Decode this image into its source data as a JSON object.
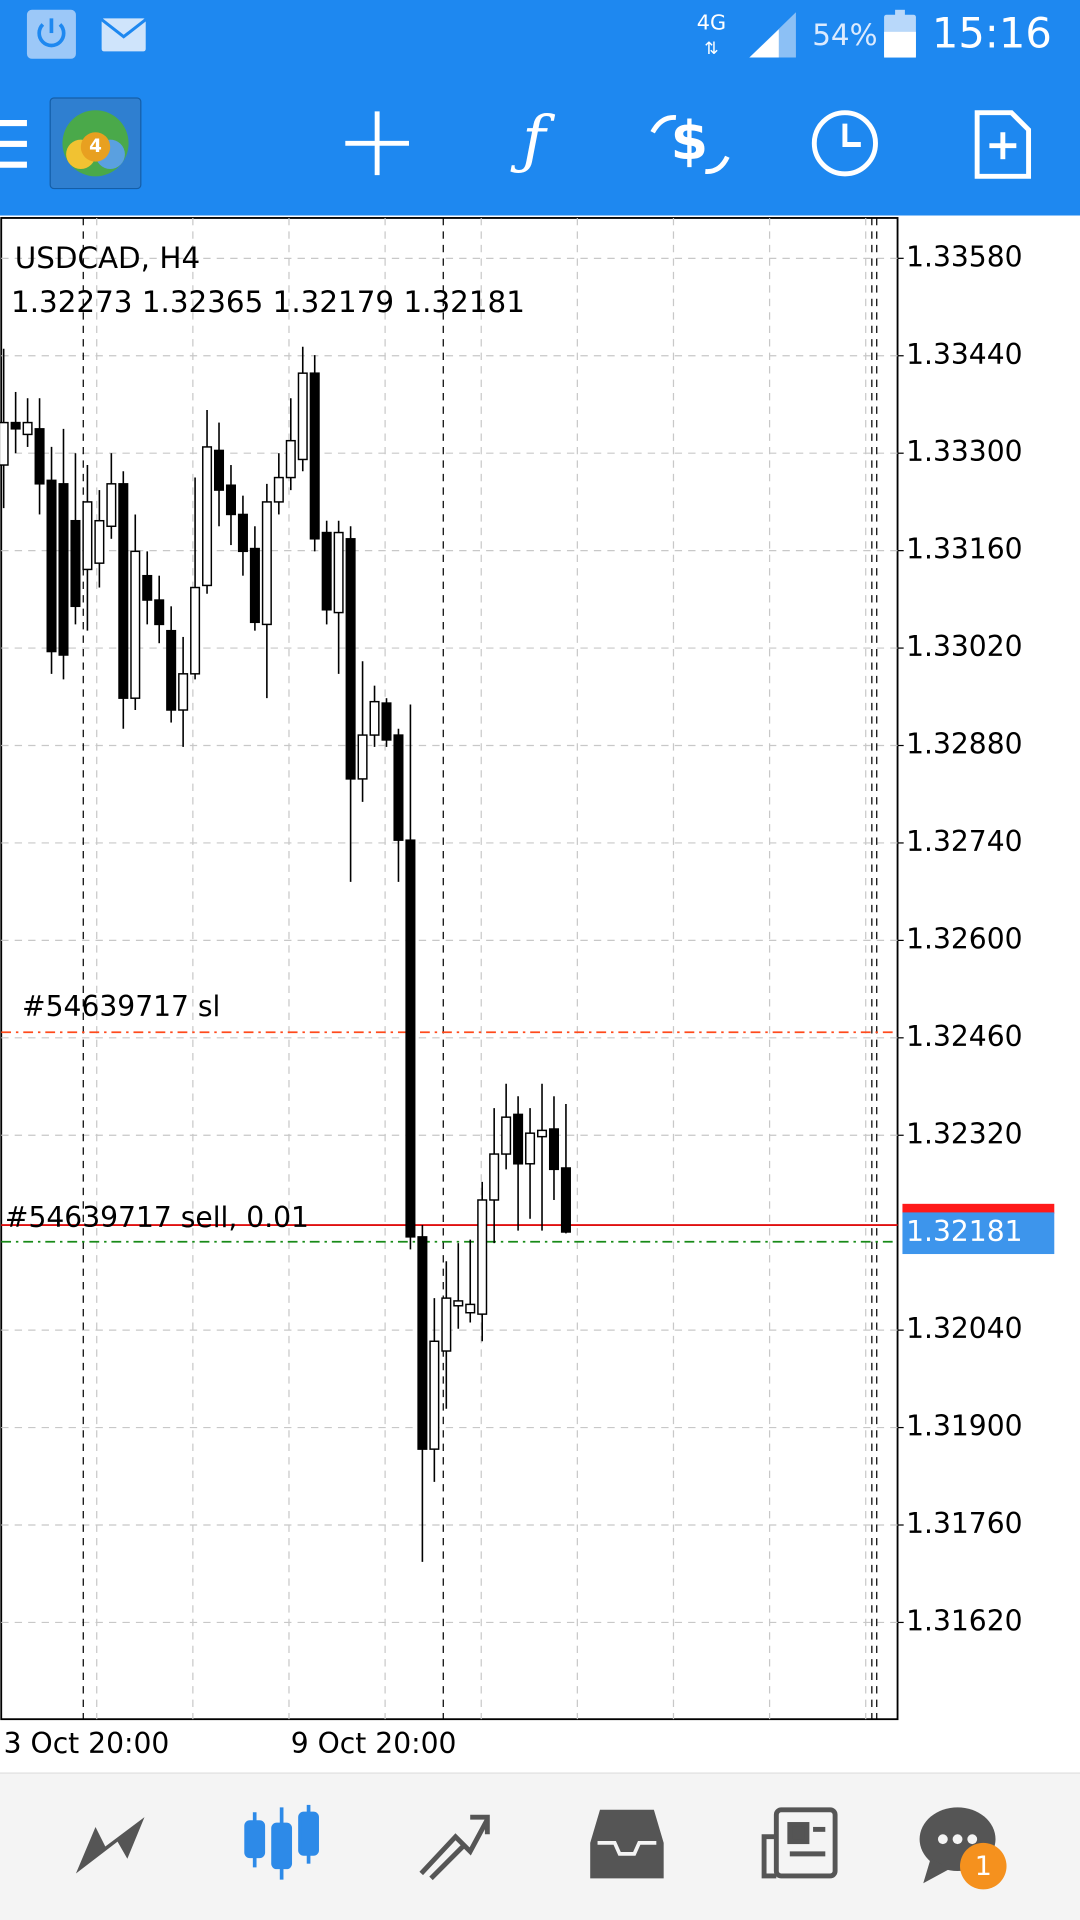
{
  "status_bar": {
    "network": "4G",
    "battery": "54%",
    "time": "15:16"
  },
  "bottom_nav": {
    "badge": "1"
  },
  "chart_data": {
    "type": "candlestick",
    "title": "USDCAD, H4",
    "ohlc_label": "1.32273 1.32365 1.32179 1.32181",
    "categories": [
      "3 Oct 20:00",
      null,
      null,
      null,
      null,
      null,
      null,
      null,
      null,
      null,
      null,
      null,
      null,
      null,
      null,
      null,
      null,
      null,
      null,
      null,
      null,
      null,
      null,
      null,
      "9 Oct 20:00",
      null,
      null,
      null,
      null,
      null,
      null,
      null,
      null,
      null,
      null,
      null,
      null,
      null,
      null,
      null,
      null,
      null,
      null,
      null,
      null,
      null,
      null,
      null
    ],
    "open": [
      1.33283,
      1.33344,
      1.33327,
      1.33335,
      1.33261,
      1.33256,
      1.33203,
      1.33133,
      1.33142,
      1.33195,
      1.33256,
      1.32948,
      1.33124,
      1.33089,
      1.33045,
      1.32931,
      1.32983,
      1.3311,
      1.33304,
      1.33254,
      1.33212,
      1.33163,
      1.33054,
      1.3323,
      1.33265,
      1.33291,
      1.33415,
      1.33186,
      1.33071,
      1.33177,
      1.32832,
      1.32895,
      1.32941,
      1.32895,
      1.32744,
      1.32174,
      1.31869,
      1.3201,
      1.32075,
      1.32065,
      1.32063,
      1.32227,
      1.32293,
      1.3235,
      1.32279,
      1.32318,
      1.32329,
      1.32273
    ],
    "high": [
      1.3345,
      1.33388,
      1.33379,
      1.33379,
      1.33309,
      1.33335,
      1.333,
      1.33283,
      1.33247,
      1.333,
      1.33274,
      1.33212,
      1.33159,
      1.33124,
      1.3308,
      1.33036,
      1.33265,
      1.33362,
      1.33344,
      1.33283,
      1.33239,
      1.33195,
      1.33256,
      1.333,
      1.33379,
      1.33453,
      1.33441,
      1.33203,
      1.33203,
      1.33195,
      1.33001,
      1.32966,
      1.32948,
      1.32904,
      1.32939,
      1.32191,
      1.32086,
      1.32139,
      1.32165,
      1.3217,
      1.32253,
      1.32359,
      1.32394,
      1.32376,
      1.32359,
      1.32394,
      1.32376,
      1.32365
    ],
    "low": [
      1.33221,
      1.333,
      1.33309,
      1.33212,
      1.32983,
      1.32975,
      1.33054,
      1.33045,
      1.33107,
      1.33177,
      1.32904,
      1.32931,
      1.33054,
      1.33027,
      1.32913,
      1.32878,
      1.32975,
      1.33098,
      1.33195,
      1.33168,
      1.33124,
      1.33045,
      1.32948,
      1.33212,
      1.33247,
      1.33274,
      1.33159,
      1.33054,
      1.32983,
      1.32684,
      1.32799,
      1.32878,
      1.32878,
      1.32684,
      1.32156,
      1.31707,
      1.31822,
      1.31927,
      1.32042,
      1.32051,
      1.32024,
      1.32165,
      1.32271,
      1.32183,
      1.322,
      1.32183,
      1.32227,
      1.32179
    ],
    "close": [
      1.33344,
      1.33335,
      1.33344,
      1.33256,
      1.33015,
      1.3301,
      1.3308,
      1.3323,
      1.33203,
      1.33256,
      1.32948,
      1.33159,
      1.33089,
      1.33054,
      1.32931,
      1.32983,
      1.33107,
      1.33309,
      1.33247,
      1.33212,
      1.33159,
      1.33057,
      1.3323,
      1.33265,
      1.33318,
      1.33415,
      1.33177,
      1.33075,
      1.33186,
      1.32832,
      1.32895,
      1.32943,
      1.32888,
      1.32744,
      1.32174,
      1.31869,
      1.32024,
      1.32086,
      1.32082,
      1.32077,
      1.32227,
      1.32293,
      1.32346,
      1.32279,
      1.32323,
      1.32327,
      1.32271,
      1.32181
    ],
    "bull_color": "#ffffff",
    "bear_color": "#000000",
    "ylim": [
      1.31481,
      1.33638
    ],
    "yticks": [
      {
        "value": 1.3358,
        "label": "1.33580"
      },
      {
        "value": 1.3344,
        "label": "1.33440"
      },
      {
        "value": 1.333,
        "label": "1.33300"
      },
      {
        "value": 1.3316,
        "label": "1.33160"
      },
      {
        "value": 1.3302,
        "label": "1.33020"
      },
      {
        "value": 1.3288,
        "label": "1.32880"
      },
      {
        "value": 1.3274,
        "label": "1.32740"
      },
      {
        "value": 1.326,
        "label": "1.32600"
      },
      {
        "value": 1.3246,
        "label": "1.32460"
      },
      {
        "value": 1.3232,
        "label": "1.32320"
      },
      {
        "value": 1.3204,
        "label": "1.32040"
      },
      {
        "value": 1.319,
        "label": "1.31900"
      },
      {
        "value": 1.3176,
        "label": "1.31760"
      },
      {
        "value": 1.3162,
        "label": "1.31620"
      }
    ],
    "grid": true,
    "lines": [
      {
        "label": "#54639717 sl",
        "value": 1.32468,
        "color": "#ff4a1c",
        "style": "dashdot"
      },
      {
        "label": "#54639717 sell, 0.01",
        "value": 1.32191,
        "color": "#e01010",
        "style": "solid"
      },
      {
        "value": 1.32167,
        "color": "#188a18",
        "style": "dashdot"
      }
    ],
    "price_tag": {
      "value": 1.32181,
      "label": "1.32181",
      "color": "#3d95ec"
    }
  }
}
